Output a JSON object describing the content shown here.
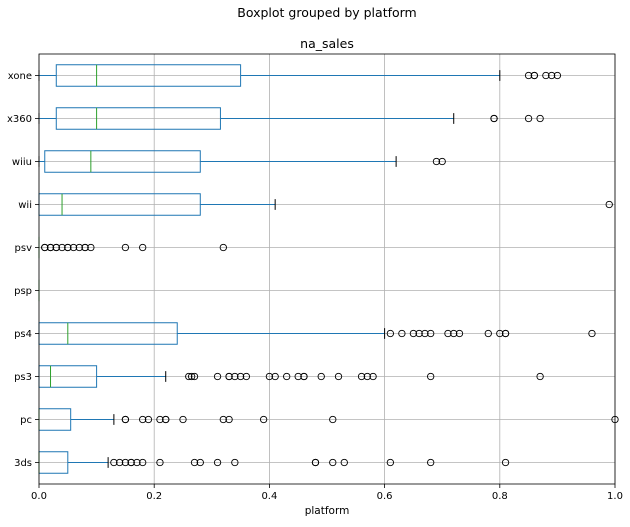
{
  "chart_data": {
    "type": "boxplot",
    "suptitle": "Boxplot grouped by platform",
    "title": "na_sales",
    "xlabel": "platform",
    "xlim": [
      0,
      1.0
    ],
    "xticks": [
      "0.0",
      "0.2",
      "0.4",
      "0.6",
      "0.8",
      "1.0"
    ],
    "xtick_values": [
      0,
      0.2,
      0.4,
      0.6,
      0.8,
      1.0
    ],
    "grid": true,
    "colors": {
      "box": "#1f77b4",
      "median": "#2ca02c",
      "grid": "#b0b0b0"
    },
    "categories": [
      "xone",
      "x360",
      "wiiu",
      "wii",
      "psv",
      "psp",
      "ps4",
      "ps3",
      "pc",
      "3ds"
    ],
    "boxes": [
      {
        "platform": "xone",
        "whislo": 0.0,
        "q1": 0.03,
        "med": 0.1,
        "q3": 0.35,
        "whishi": 0.8,
        "fliers": [
          0.85,
          0.86,
          0.86,
          0.88,
          0.89,
          0.9
        ]
      },
      {
        "platform": "x360",
        "whislo": 0.0,
        "q1": 0.03,
        "med": 0.1,
        "q3": 0.315,
        "whishi": 0.72,
        "fliers": [
          0.79,
          0.79,
          0.85,
          0.87
        ]
      },
      {
        "platform": "wiiu",
        "whislo": 0.0,
        "q1": 0.01,
        "med": 0.09,
        "q3": 0.28,
        "whishi": 0.62,
        "fliers": [
          0.69,
          0.7
        ]
      },
      {
        "platform": "wii",
        "whislo": 0.0,
        "q1": 0.0,
        "med": 0.04,
        "q3": 0.28,
        "whishi": 0.41,
        "fliers": [
          0.99
        ]
      },
      {
        "platform": "psv",
        "whislo": 0.0,
        "q1": 0.0,
        "med": 0.0,
        "q3": 0.0,
        "whishi": 0.0,
        "fliers": [
          0.01,
          0.01,
          0.02,
          0.02,
          0.03,
          0.03,
          0.04,
          0.05,
          0.05,
          0.06,
          0.07,
          0.08,
          0.08,
          0.09,
          0.15,
          0.18,
          0.32
        ]
      },
      {
        "platform": "psp",
        "whislo": 0.0,
        "q1": 0.0,
        "med": 0.0,
        "q3": 0.0,
        "whishi": 0.0,
        "fliers": []
      },
      {
        "platform": "ps4",
        "whislo": 0.0,
        "q1": 0.0,
        "med": 0.05,
        "q3": 0.24,
        "whishi": 0.6,
        "fliers": [
          0.61,
          0.63,
          0.65,
          0.66,
          0.67,
          0.68,
          0.71,
          0.72,
          0.73,
          0.78,
          0.8,
          0.81,
          0.81,
          0.96
        ]
      },
      {
        "platform": "ps3",
        "whislo": 0.0,
        "q1": 0.0,
        "med": 0.02,
        "q3": 0.1,
        "whishi": 0.22,
        "fliers": [
          0.26,
          0.265,
          0.27,
          0.31,
          0.33,
          0.33,
          0.34,
          0.35,
          0.36,
          0.4,
          0.41,
          0.43,
          0.45,
          0.46,
          0.46,
          0.49,
          0.52,
          0.56,
          0.57,
          0.58,
          0.68,
          0.87
        ]
      },
      {
        "platform": "pc",
        "whislo": 0.0,
        "q1": 0.0,
        "med": 0.0,
        "q3": 0.055,
        "whishi": 0.13,
        "fliers": [
          0.15,
          0.15,
          0.18,
          0.19,
          0.21,
          0.22,
          0.22,
          0.25,
          0.32,
          0.33,
          0.39,
          0.51,
          1.0
        ]
      },
      {
        "platform": "3ds",
        "whislo": 0.0,
        "q1": 0.0,
        "med": 0.0,
        "q3": 0.05,
        "whishi": 0.12,
        "fliers": [
          0.13,
          0.14,
          0.15,
          0.16,
          0.16,
          0.17,
          0.18,
          0.21,
          0.27,
          0.28,
          0.31,
          0.34,
          0.48,
          0.48,
          0.51,
          0.53,
          0.61,
          0.68,
          0.81
        ]
      }
    ]
  }
}
